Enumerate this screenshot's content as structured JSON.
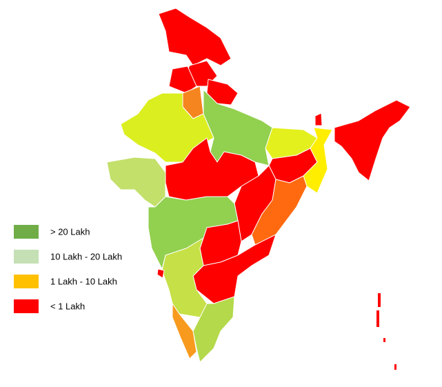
{
  "legend": {
    "items": [
      {
        "label": "> 20 Lakh",
        "color": "#70ad47"
      },
      {
        "label": "10 Lakh - 20 Lakh",
        "color": "#c5e0b4"
      },
      {
        "label": "1 Lakh - 10 Lakh",
        "color": "#ffc000"
      },
      {
        "label": "< 1 Lakh",
        "color": "#ff0000"
      }
    ]
  }
}
